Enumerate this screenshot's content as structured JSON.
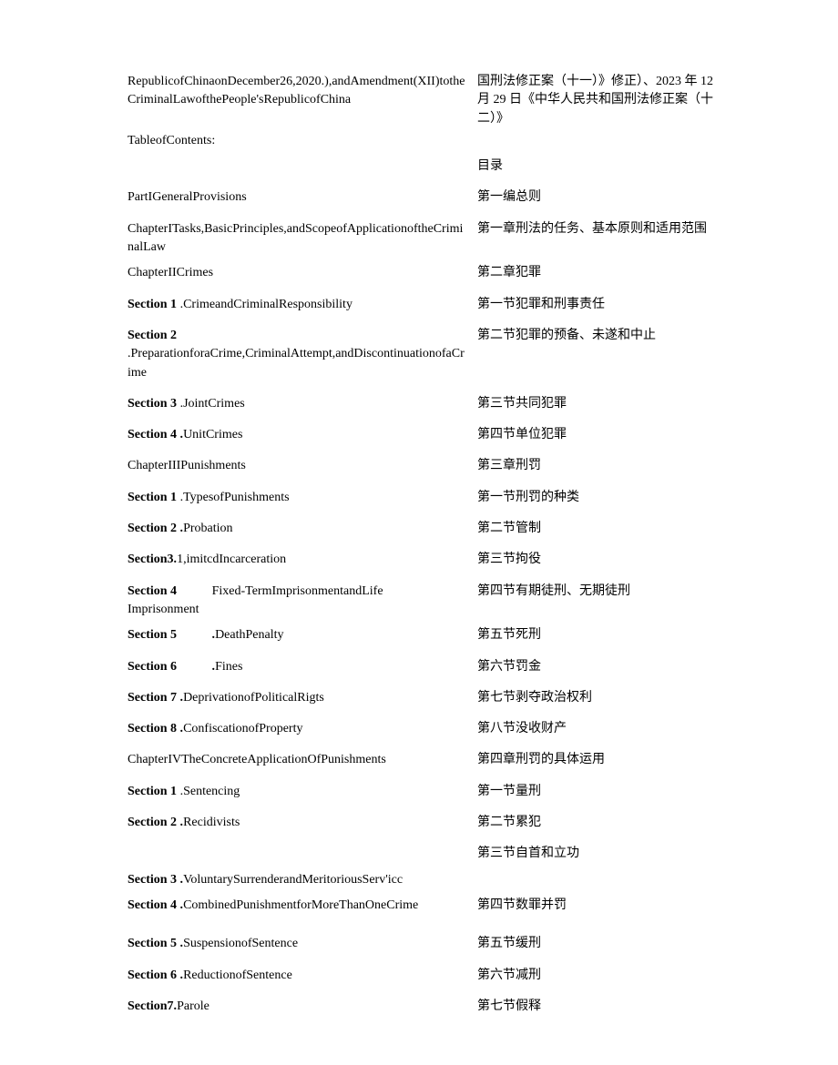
{
  "rows": [
    {
      "left": "RepublicofChinaonDecember26,2020.),andAmendment(XII)totheCriminalLawofthePeople'sRepublicofChina",
      "right": "国刑法修正案（十一）》修正）、2023 年 12 月 29 日《中华人民共和国刑法修正案（十二）》",
      "leftBold": false,
      "cls": "compact"
    },
    {
      "left": "TableofContents:",
      "right": "",
      "leftBold": false,
      "cls": "tight"
    },
    {
      "left": "",
      "right": "目录",
      "leftBold": false
    },
    {
      "left": "PartIGeneralProvisions",
      "right": "第一编总则",
      "leftBold": false
    },
    {
      "left": "ChapterITasks,BasicPrinciples,andScopeofApplicationoftheCriminalLaw",
      "right": "第一章刑法的任务、基本原则和适用范围",
      "leftBold": false,
      "cls": "tight"
    },
    {
      "left": "ChapterIICrimes",
      "right": "第二章犯罪",
      "leftBold": false
    },
    {
      "left": "[[b:Section 1]] .CrimeandCriminalResponsibility",
      "right": "第一节犯罪和刑事责任",
      "leftBold": false
    },
    {
      "left": "[[b:Section 2]] .PreparationforaCrime,CriminalAttempt,andDiscontinuationofaCrime",
      "right": "第二节犯罪的预备、未遂和中止",
      "leftBold": false
    },
    {
      "left": "[[b:Section 3]] .JointCrimes",
      "right": "第三节共同犯罪",
      "leftBold": false
    },
    {
      "left": "[[b:Section 4 .]]UnitCrimes",
      "right": "第四节单位犯罪",
      "leftBold": false
    },
    {
      "left": "ChapterIIIPunishments",
      "right": "第三章刑罚",
      "leftBold": false
    },
    {
      "left": "[[b:Section 1]] .TypesofPunishments",
      "right": "第一节刑罚的种类",
      "leftBold": false
    },
    {
      "left": "[[b:Section 2 .]]Probation",
      "right": "第二节管制",
      "leftBold": false
    },
    {
      "left": "[[b:Section3.]]1,imitcdIncarceration",
      "right": "第三节拘役",
      "leftBold": false
    },
    {
      "left": "[[b:Section 4]]           Fixed-TermImprisonmentandLife\nImprisonment",
      "right": "第四节有期徒刑、无期徒刑",
      "leftBold": false,
      "cls": "tight",
      "pre": true
    },
    {
      "left": "[[b:Section 5           .]]DeathPenalty",
      "right": "第五节死刑",
      "leftBold": false,
      "pre": true
    },
    {
      "left": "[[b:Section 6           .]]Fines",
      "right": "第六节罚金",
      "leftBold": false,
      "pre": true
    },
    {
      "left": "[[b:Section 7 .]]DeprivationofPoliticalRigts",
      "right": "第七节剥夺政治权利",
      "leftBold": false
    },
    {
      "left": "[[b:Section 8 .]]ConfiscationofProperty",
      "right": "第八节没收财产",
      "leftBold": false
    },
    {
      "left": "ChapterIVTheConcreteApplicationOfPunishments",
      "right": "第四章刑罚的具体运用",
      "leftBold": false
    },
    {
      "left": "[[b:Section 1]] .Sentencing",
      "right": "第一节量刑",
      "leftBold": false
    },
    {
      "left": "[[b:Section 2 .]]Recidivists",
      "right": "第二节累犯",
      "leftBold": false
    },
    {
      "left": "",
      "right": "第三节自首和立功",
      "leftBold": false,
      "cls": "tight"
    },
    {
      "left": "[[b:Section 3 .]]VoluntarySurrenderandMeritoriousServ'icc",
      "right": "",
      "leftBold": false,
      "cls": "tight"
    },
    {
      "left": "[[b:Section 4 .]]CombinedPunishmentforMoreThanOneCrime",
      "right": "第四节数罪并罚",
      "leftBold": false
    },
    {
      "left": "",
      "right": "",
      "leftBold": false,
      "cls": "tight"
    },
    {
      "left": "[[b:Section 5 .]]SuspensionofSentence",
      "right": "第五节缓刑",
      "leftBold": false
    },
    {
      "left": "[[b:Section 6 .]]ReductionofSentence",
      "right": "第六节减刑",
      "leftBold": false
    },
    {
      "left": "[[b:Section7.]]Parole",
      "right": "第七节假释",
      "leftBold": false
    }
  ]
}
